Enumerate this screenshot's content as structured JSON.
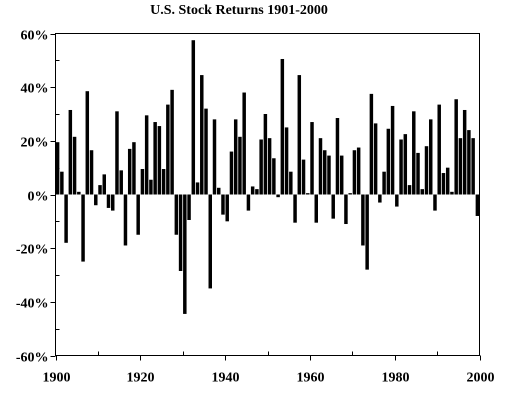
{
  "chart_data": {
    "type": "bar",
    "title": "U.S. Stock Returns 1901-2000",
    "xlabel": "",
    "ylabel": "",
    "xlim": [
      1900,
      2000
    ],
    "ylim": [
      -60,
      60
    ],
    "x_ticks": [
      1900,
      1920,
      1940,
      1960,
      1980,
      2000
    ],
    "y_ticks": [
      -60,
      -40,
      -20,
      0,
      20,
      40,
      60
    ],
    "x_tick_labels": [
      "1900",
      "1920",
      "1940",
      "1960",
      "1980",
      "2000"
    ],
    "y_tick_labels": [
      "-60%",
      "-40%",
      "-20%",
      "0%",
      "20%",
      "40%",
      "60%"
    ],
    "grid": false,
    "legend": "none",
    "bar_color": "#000000",
    "x": [
      1901,
      1902,
      1903,
      1904,
      1905,
      1906,
      1907,
      1908,
      1909,
      1910,
      1911,
      1912,
      1913,
      1914,
      1915,
      1916,
      1917,
      1918,
      1919,
      1920,
      1921,
      1922,
      1923,
      1924,
      1925,
      1926,
      1927,
      1928,
      1929,
      1930,
      1931,
      1932,
      1933,
      1934,
      1935,
      1936,
      1937,
      1938,
      1939,
      1940,
      1941,
      1942,
      1943,
      1944,
      1945,
      1946,
      1947,
      1948,
      1949,
      1950,
      1951,
      1952,
      1953,
      1954,
      1955,
      1956,
      1957,
      1958,
      1959,
      1960,
      1961,
      1962,
      1963,
      1964,
      1965,
      1966,
      1967,
      1968,
      1969,
      1970,
      1971,
      1972,
      1973,
      1974,
      1975,
      1976,
      1977,
      1978,
      1979,
      1980,
      1981,
      1982,
      1983,
      1984,
      1985,
      1986,
      1987,
      1988,
      1989,
      1990,
      1991,
      1992,
      1993,
      1994,
      1995,
      1996,
      1997,
      1998,
      1999,
      2000
    ],
    "values": [
      19.5,
      8.5,
      -18,
      31.5,
      21.5,
      1,
      -25,
      38.5,
      16.5,
      -4,
      3.5,
      7.5,
      -5,
      -6,
      31,
      9,
      -19,
      17,
      19.5,
      -15,
      9.5,
      29.5,
      5.5,
      27,
      25.5,
      9.5,
      33.5,
      39,
      -15,
      -28.5,
      -44.5,
      -9.5,
      57.5,
      4.5,
      44.5,
      32,
      -35,
      28,
      2.5,
      -7.5,
      -10,
      16,
      28,
      21.5,
      38,
      -6,
      3,
      2,
      20.5,
      30,
      21,
      13.5,
      -1,
      50.5,
      25,
      8.5,
      -10.5,
      44.5,
      13,
      0.5,
      27,
      -10.5,
      21,
      16.5,
      14.5,
      -9,
      28.5,
      14.5,
      -11,
      0.5,
      16.5,
      17.5,
      -19,
      -28,
      37.5,
      26.5,
      -3,
      8.5,
      24.5,
      33,
      -4.5,
      20.5,
      22.5,
      3.5,
      31,
      15.5,
      2,
      18,
      28,
      -6,
      33.5,
      8,
      10,
      1,
      35.5,
      21,
      31.5,
      24,
      21,
      -8
    ]
  }
}
